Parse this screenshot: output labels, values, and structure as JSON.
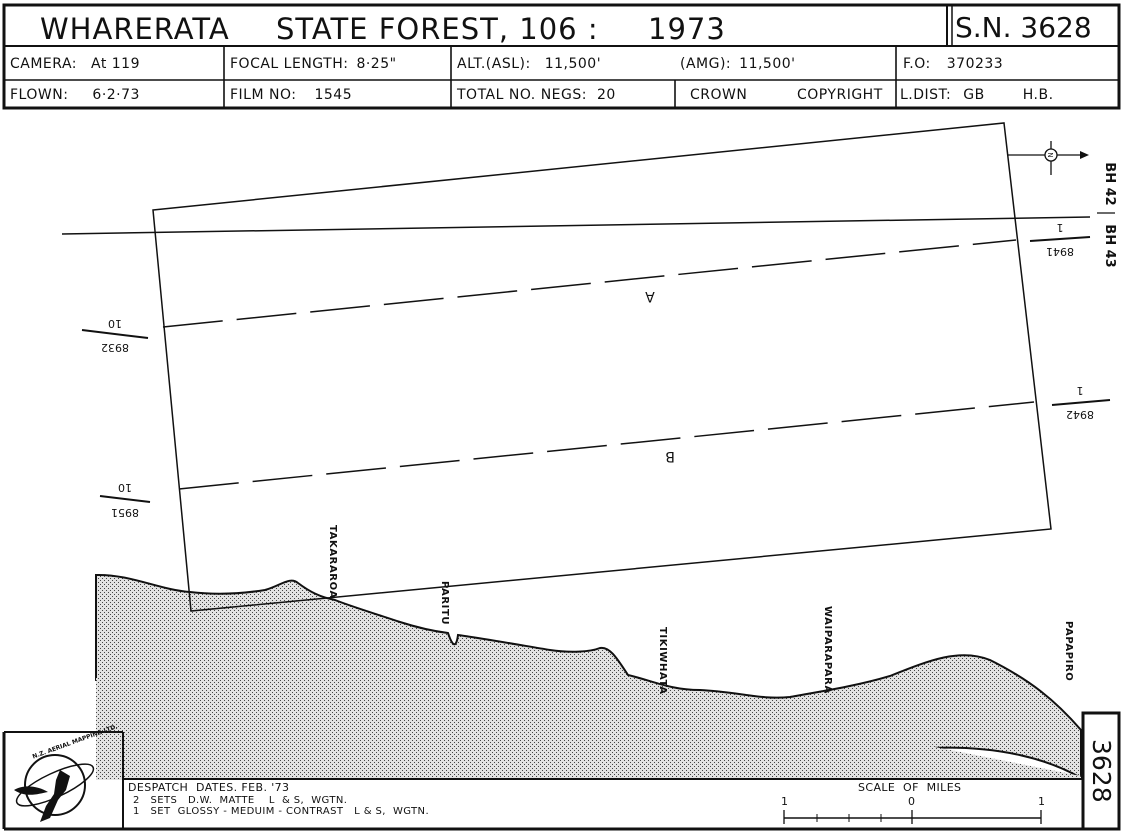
{
  "header": {
    "title_place": "WHARERATA",
    "title_forest": "STATE  FOREST, 106  :",
    "title_year": "1973",
    "sn": "S.N. 3628",
    "camera_label": "CAMERA:",
    "camera_value": "At 119",
    "focal_label": "FOCAL LENGTH:",
    "focal_value": "8·25\"",
    "alt_label": "ALT.(ASL):",
    "alt_value": "11,500'",
    "amg_label": "(AMG):",
    "amg_value": "11,500'",
    "fo_label": "F.O:",
    "fo_value": "370233",
    "flown_label": "FLOWN:",
    "flown_value": "6·2·73",
    "film_label": "FILM NO:",
    "film_value": "1545",
    "negs_label": "TOTAL NO. NEGS:",
    "negs_value": "20",
    "crown": "CROWN",
    "copyright": "COPYRIGHT",
    "ldist_label": "L.DIST:",
    "ldist_value1": "GB",
    "ldist_value2": "H.B."
  },
  "map": {
    "bh42": "BH 42",
    "bh43": "BH 43",
    "north": "N",
    "run_a": "A",
    "run_b": "B",
    "photo_8932_top": "8932",
    "photo_8932_bottom": "10",
    "photo_8951_top": "8951",
    "photo_8951_bottom": "10",
    "photo_8941_top": "8941",
    "photo_8941_bottom": "1",
    "photo_8942_top": "8942",
    "photo_8942_bottom": "1",
    "places": [
      "TAKARAROA",
      "PARITU",
      "TIKIWHATA",
      "WAIPARAPARA",
      "PAPAPIRO"
    ]
  },
  "footer": {
    "logo_text": "N.Z. AERIAL MAPPING LTD. HASTINGS",
    "despatch_line1": "DESPATCH  DATES. FEB. '73",
    "despatch_line2": "2   SETS   D.W.  MATTE    L  & S,  WGTN.",
    "despatch_line3": "1   SET  GLOSSY - MEDUIM - CONTRAST   L & S,  WGTN.",
    "scale_title": "SCALE  OF  MILES",
    "scale_left": "1",
    "scale_mid": "0",
    "scale_right": "1",
    "sheet_number": "3628"
  }
}
